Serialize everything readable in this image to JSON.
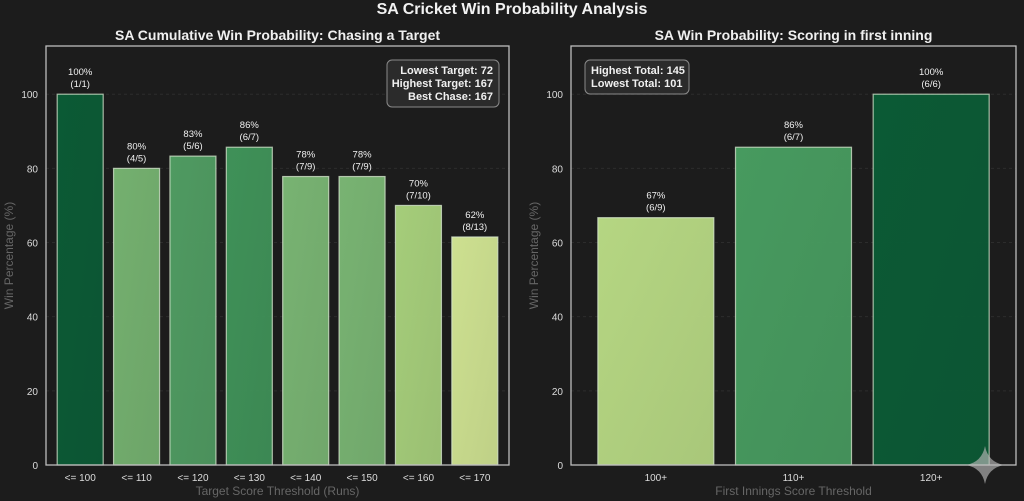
{
  "suptitle": "SA Cricket Win Probability Analysis",
  "chart_data": [
    {
      "type": "bar",
      "title": "SA Cumulative Win Probability: Chasing a Target",
      "xlabel": "Target Score Threshold (Runs)",
      "ylabel": "Win Percentage (%)",
      "ylim": [
        0,
        113
      ],
      "yticks": [
        0,
        20,
        40,
        60,
        80,
        100
      ],
      "grid": true,
      "categories": [
        "<= 100",
        "<= 110",
        "<= 120",
        "<= 130",
        "<= 140",
        "<= 150",
        "<= 160",
        "<= 170"
      ],
      "values": [
        100,
        80,
        83.3,
        85.7,
        77.8,
        77.8,
        70,
        61.5
      ],
      "labels": [
        "100%",
        "80%",
        "83%",
        "86%",
        "78%",
        "78%",
        "70%",
        "62%"
      ],
      "counts": [
        "(1/1)",
        "(4/5)",
        "(5/6)",
        "(6/7)",
        "(7/9)",
        "(7/9)",
        "(7/10)",
        "(8/13)"
      ],
      "colors": [
        "#0b5a35",
        "#74b06f",
        "#4f9a61",
        "#3f9158",
        "#78b372",
        "#78b372",
        "#a5cd7a",
        "#cde090"
      ],
      "info_box": {
        "position": "top-right",
        "lines": [
          "Lowest Target: 72",
          "Highest Target: 167",
          "Best Chase: 167"
        ]
      }
    },
    {
      "type": "bar",
      "title": "SA Win Probability: Scoring in first inning",
      "xlabel": "First Innings Score Threshold",
      "ylabel": "Win Percentage (%)",
      "ylim": [
        0,
        113
      ],
      "yticks": [
        0,
        20,
        40,
        60,
        80,
        100
      ],
      "grid": true,
      "categories": [
        "100+",
        "110+",
        "120+"
      ],
      "values": [
        66.7,
        85.7,
        100
      ],
      "labels": [
        "67%",
        "86%",
        "100%"
      ],
      "counts": [
        "(6/9)",
        "(6/7)",
        "(6/6)"
      ],
      "colors": [
        "#b5d682",
        "#479a5f",
        "#0b5a35"
      ],
      "info_box": {
        "position": "top-left",
        "lines": [
          "Highest Total: 145",
          "Lowest Total:  101"
        ]
      }
    }
  ]
}
